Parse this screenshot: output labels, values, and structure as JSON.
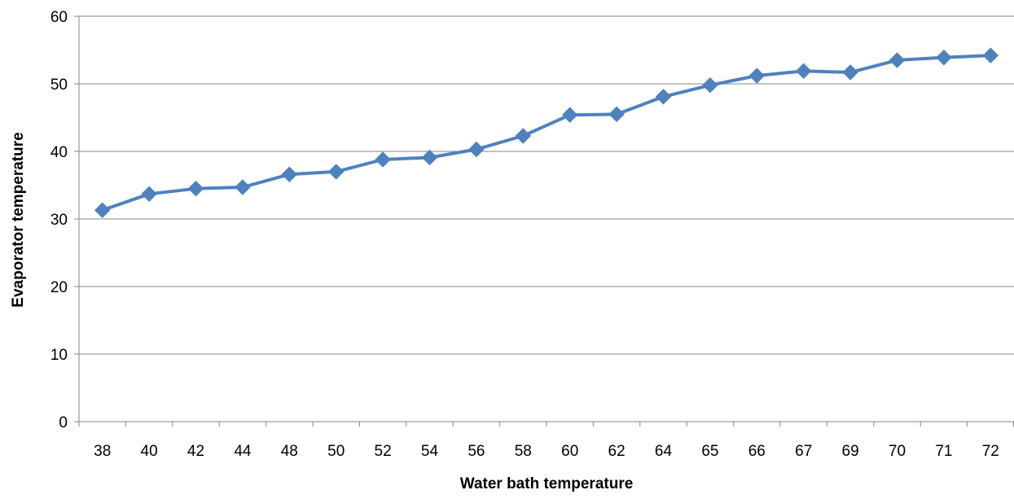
{
  "chart_data": {
    "type": "line",
    "title": "",
    "xlabel": "Water bath temperature",
    "ylabel": "Evaporator temperature",
    "categories": [
      "38",
      "40",
      "42",
      "44",
      "48",
      "50",
      "52",
      "54",
      "56",
      "58",
      "60",
      "62",
      "64",
      "65",
      "66",
      "67",
      "69",
      "70",
      "71",
      "72"
    ],
    "series": [
      {
        "values": [
          31.3,
          33.7,
          34.5,
          34.7,
          36.6,
          37.0,
          38.8,
          39.1,
          40.3,
          42.3,
          45.4,
          45.5,
          48.1,
          49.8,
          51.2,
          51.9,
          51.7,
          53.5,
          53.9,
          54.2
        ],
        "color": "#4F81BD",
        "marker": "diamond"
      }
    ],
    "ylim": [
      0,
      60
    ],
    "yticks": [
      "0",
      "10",
      "20",
      "30",
      "40",
      "50",
      "60"
    ],
    "grid": "horizontal",
    "legend": "none"
  }
}
